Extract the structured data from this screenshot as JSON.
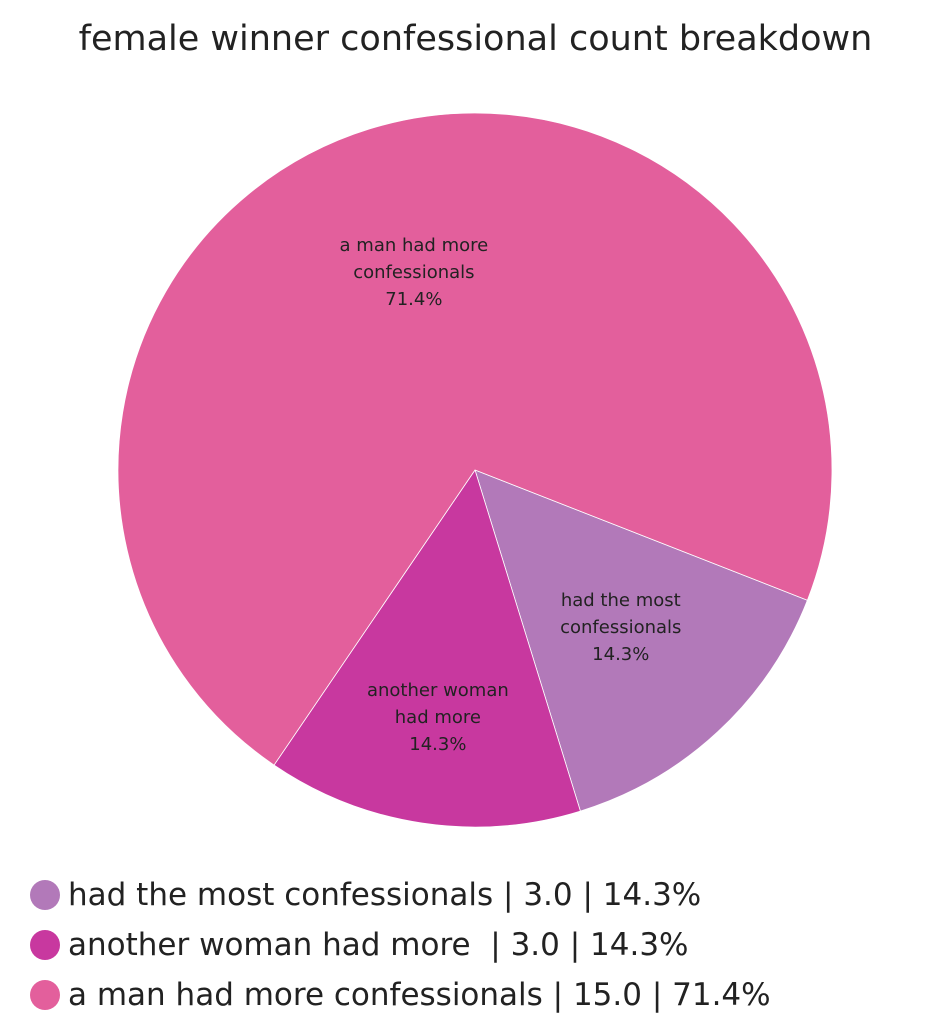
{
  "chart_data": {
    "type": "pie",
    "title": "female winner confessional count breakdown",
    "slices": [
      {
        "name": "had the most confessionals",
        "value": 3.0,
        "percent": 14.3,
        "color": "#b279b9",
        "label_lines": [
          "had the most",
          "confessionals",
          "14.3%"
        ],
        "legend_text": "had the most confessionals | 3.0 | 14.3%"
      },
      {
        "name": "another woman had more",
        "value": 3.0,
        "percent": 14.3,
        "color": "#c8389f",
        "label_lines": [
          "another woman",
          "had more",
          "14.3%"
        ],
        "legend_text": "another woman had more  | 3.0 | 14.3%"
      },
      {
        "name": "a man had more confessionals",
        "value": 15.0,
        "percent": 71.4,
        "color": "#e35f9c",
        "label_lines": [
          "a man had more",
          "confessionals",
          "71.4%"
        ],
        "legend_text": "a man had more confessionals | 15.0 | 71.4%"
      }
    ],
    "legend_position": "bottom-left"
  }
}
